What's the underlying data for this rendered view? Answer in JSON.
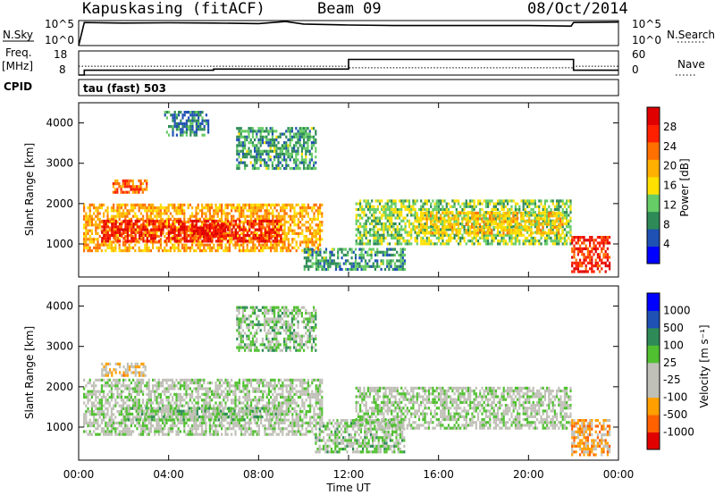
{
  "header": {
    "station": "Kapuskasing (fitACF)",
    "beam": "Beam 09",
    "date": "08/Oct/2014"
  },
  "noise_panel": {
    "left_label": "N.Sky",
    "left_ticks": [
      "10^5",
      "10^0"
    ],
    "right_ticks": [
      "10^5",
      "10^0"
    ],
    "right_label": "N.Search"
  },
  "freq_panel": {
    "left_label_1": "Freq.",
    "left_label_2": "[MHz]",
    "left_ticks": [
      "18",
      "8"
    ],
    "right_ticks": [
      "60",
      "0"
    ],
    "right_label": "Nave"
  },
  "cpid_panel": {
    "left_label": "CPID",
    "value_text": "tau (fast) 503"
  },
  "power_panel": {
    "ylabel": "Slant Range [km]",
    "cbar_label": "Power [dB]",
    "cbar_ticks": [
      "28",
      "24",
      "20",
      "16",
      "12",
      "8",
      "4"
    ]
  },
  "velocity_panel": {
    "ylabel": "Slant Range [km]",
    "cbar_label": "Velocity  [m s⁻¹]",
    "cbar_ticks": [
      "1000",
      "500",
      "100",
      "25",
      "-25",
      "-100",
      "-500",
      "-1000"
    ]
  },
  "xaxis": {
    "label": "Time UT",
    "ticks": [
      "00:00",
      "04:00",
      "08:00",
      "12:00",
      "16:00",
      "20:00",
      "00:00"
    ]
  },
  "chart_data": [
    {
      "type": "line",
      "name": "noise",
      "x_hours": [
        0,
        0.25,
        2,
        4,
        6,
        8,
        9.2,
        10,
        12,
        14,
        16,
        18,
        20,
        21.9,
        22,
        24
      ],
      "log10_n_sky": [
        0,
        4.6,
        4.5,
        4.55,
        4.5,
        4.4,
        4.8,
        4.3,
        4.1,
        4.0,
        4.0,
        4.0,
        4.0,
        3.9,
        4.6,
        4.7
      ],
      "yscale": "log",
      "ylim": [
        1,
        100000
      ]
    },
    {
      "type": "line",
      "name": "frequency",
      "x_hours": [
        0,
        0.25,
        6,
        12,
        21.9,
        22,
        24
      ],
      "freq_mhz": [
        8,
        10,
        10.5,
        14.5,
        14.5,
        10,
        10
      ],
      "nave_x": [
        0,
        6,
        12,
        21.9,
        22,
        24
      ],
      "nave": [
        22,
        22,
        18,
        18,
        22,
        22
      ],
      "freq_ylim": [
        8,
        18
      ],
      "nave_ylim": [
        0,
        60
      ]
    },
    {
      "type": "heatmap",
      "name": "power",
      "xlim": [
        0,
        24
      ],
      "ylim": [
        180,
        4500
      ],
      "yticks": [
        1000,
        2000,
        3000,
        4000
      ],
      "zlim": [
        0,
        32
      ],
      "colorscale": [
        "#0000ff",
        "#1f50b4",
        "#2e8b57",
        "#66cc66",
        "#ffe000",
        "#ffb000",
        "#ff7000",
        "#ff2000",
        "#e00000"
      ],
      "echo_regions": [
        {
          "t": [
            0.2,
            10.8
          ],
          "r": [
            800,
            2000
          ],
          "z": 20
        },
        {
          "t": [
            1.0,
            9.0
          ],
          "r": [
            1100,
            1600
          ],
          "z": 28
        },
        {
          "t": [
            1.5,
            3.0
          ],
          "r": [
            2300,
            2600
          ],
          "z": 24
        },
        {
          "t": [
            5.0,
            6.5
          ],
          "r": [
            1200,
            1500
          ],
          "z": 29
        },
        {
          "t": [
            7.0,
            10.5
          ],
          "r": [
            2900,
            3900
          ],
          "z": 10
        },
        {
          "t": [
            3.8,
            5.8
          ],
          "r": [
            3700,
            4300
          ],
          "z": 8
        },
        {
          "t": [
            10.0,
            14.5
          ],
          "r": [
            400,
            900
          ],
          "z": 10
        },
        {
          "t": [
            12.3,
            21.9
          ],
          "r": [
            1000,
            2100
          ],
          "z": 13
        },
        {
          "t": [
            15.0,
            21.5
          ],
          "r": [
            1300,
            1800
          ],
          "z": 18
        },
        {
          "t": [
            21.9,
            23.6
          ],
          "r": [
            300,
            1200
          ],
          "z": 27
        }
      ]
    },
    {
      "type": "heatmap",
      "name": "velocity",
      "xlim": [
        0,
        24
      ],
      "ylim": [
        180,
        4500
      ],
      "yticks": [
        1000,
        2000,
        3000,
        4000
      ],
      "zlim": [
        -1000,
        1000
      ],
      "colorscale": [
        "#e00000",
        "#ff6000",
        "#ffa000",
        "#c0c0b8",
        "#c0c0b8",
        "#50c030",
        "#2e8b57",
        "#1f50b4",
        "#0000ff"
      ],
      "echo_regions": [
        {
          "t": [
            0.2,
            10.8
          ],
          "r": [
            800,
            2200
          ],
          "v": 0
        },
        {
          "t": [
            1.0,
            3.0
          ],
          "r": [
            2300,
            2600
          ],
          "v": -300
        },
        {
          "t": [
            2.0,
            9.0
          ],
          "r": [
            1200,
            1500
          ],
          "v": 150
        },
        {
          "t": [
            7.0,
            10.5
          ],
          "r": [
            2900,
            4000
          ],
          "v": 150
        },
        {
          "t": [
            10.5,
            14.5
          ],
          "r": [
            400,
            1200
          ],
          "v": 100
        },
        {
          "t": [
            12.3,
            21.9
          ],
          "r": [
            1000,
            2000
          ],
          "v": 0
        },
        {
          "t": [
            21.9,
            23.6
          ],
          "r": [
            300,
            1200
          ],
          "v": -400
        }
      ]
    }
  ]
}
